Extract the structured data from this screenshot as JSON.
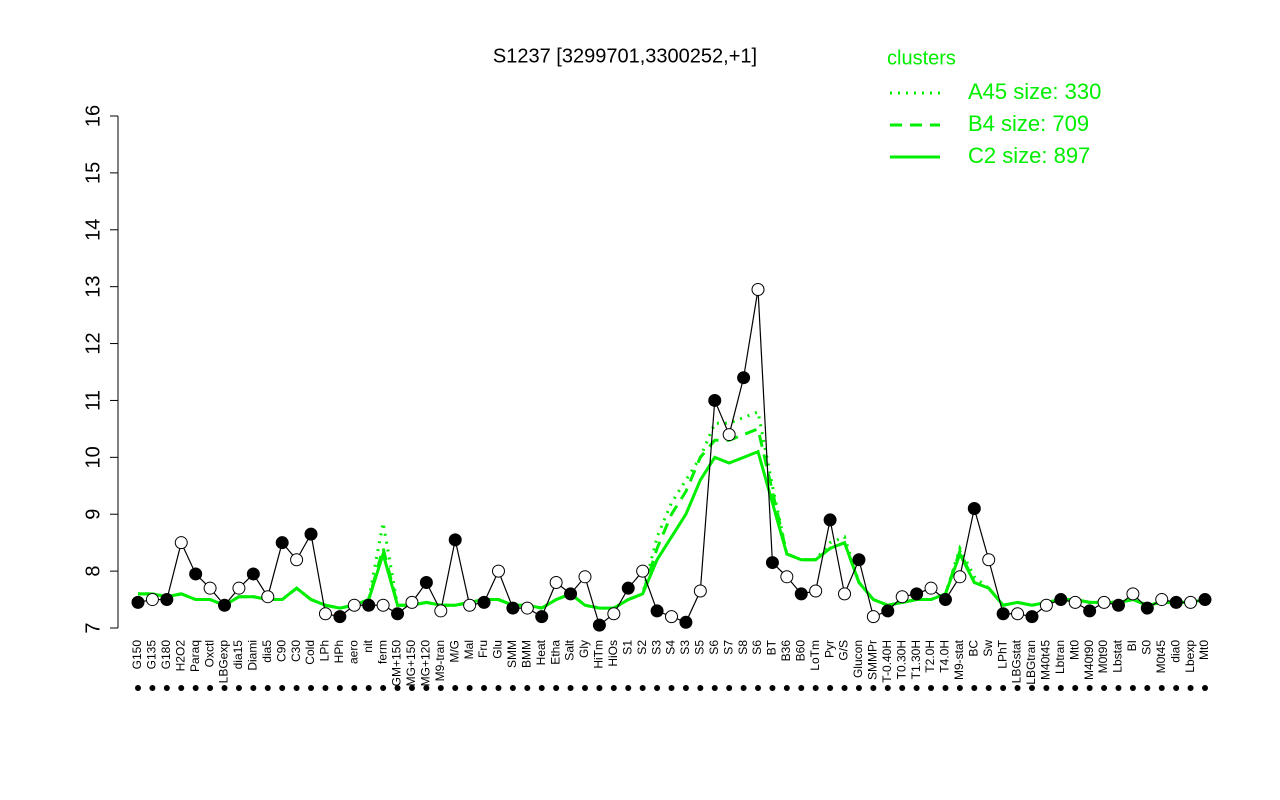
{
  "chart_data": {
    "type": "line",
    "title": "S1237 [3299701,3300252,+1]",
    "legend_title": "clusters",
    "categories": [
      "G150",
      "G135",
      "G180",
      "H2O2",
      "Paraq",
      "Oxctl",
      "LBGexp",
      "dia15",
      "Diami",
      "dia5",
      "C90",
      "C30",
      "Cold",
      "LPh",
      "HPh",
      "aero",
      "nit",
      "ferm",
      "GM+150",
      "MG+150",
      "MG+120",
      "M9-tran",
      "M/G",
      "Mal",
      "Fru",
      "Glu",
      "SMM",
      "BMM",
      "Heat",
      "Etha",
      "Salt",
      "Gly",
      "HiTm",
      "HiOs",
      "S1",
      "S2",
      "S3",
      "S4",
      "S3",
      "S5",
      "S6",
      "S7",
      "S8",
      "S6",
      "BT",
      "B36",
      "B60",
      "LoTm",
      "Pyr",
      "G/S",
      "Glucon",
      "SMMPr",
      "T-0.40H",
      "T0.30H",
      "T1.30H",
      "T2.0H",
      "T4.0H",
      "M9-stat",
      "BC",
      "Sw",
      "LPhT",
      "LBGstat",
      "LBGtran",
      "M40t45",
      "Lbtran",
      "Mt0",
      "M40t90",
      "M0t90",
      "Lbstat",
      "BI",
      "S0",
      "M0t45",
      "dia0",
      "Lbexp",
      "Mt0"
    ],
    "values": [
      7.45,
      7.5,
      7.5,
      8.5,
      7.95,
      7.7,
      7.4,
      7.7,
      7.95,
      7.55,
      8.5,
      8.2,
      8.65,
      7.25,
      7.2,
      7.4,
      7.4,
      7.4,
      7.25,
      7.45,
      7.8,
      7.3,
      8.55,
      7.4,
      7.45,
      8.0,
      7.35,
      7.35,
      7.2,
      7.8,
      7.6,
      7.9,
      7.05,
      7.25,
      7.7,
      8.0,
      7.3,
      7.2,
      7.1,
      7.65,
      11.0,
      10.4,
      11.4,
      12.95,
      8.15,
      7.9,
      7.6,
      7.65,
      8.9,
      7.6,
      8.2,
      7.2,
      7.3,
      7.55,
      7.6,
      7.7,
      7.5,
      7.9,
      9.1,
      8.2,
      7.25,
      7.25,
      7.2,
      7.4,
      7.5,
      7.45,
      7.3,
      7.45,
      7.4,
      7.6,
      7.35,
      7.5,
      7.45,
      7.45,
      7.5
    ],
    "series": [
      {
        "name": "A45 size: 330",
        "color": "#00ee00",
        "dash": "dotted",
        "values": [
          7.6,
          7.6,
          7.55,
          7.6,
          7.5,
          7.5,
          7.4,
          7.55,
          7.55,
          7.5,
          7.5,
          7.7,
          7.5,
          7.4,
          7.35,
          7.4,
          7.5,
          8.85,
          7.4,
          7.4,
          7.45,
          7.4,
          7.4,
          7.45,
          7.5,
          7.5,
          7.4,
          7.4,
          7.35,
          7.5,
          7.6,
          7.4,
          7.35,
          7.35,
          7.5,
          7.6,
          8.6,
          9.2,
          9.6,
          10.0,
          10.6,
          10.6,
          10.7,
          10.8,
          9.5,
          8.3,
          8.2,
          8.2,
          8.5,
          8.6,
          7.8,
          7.5,
          7.4,
          7.45,
          7.5,
          7.5,
          7.6,
          8.4,
          7.9,
          7.7,
          7.4,
          7.45,
          7.4,
          7.45,
          7.5,
          7.5,
          7.45,
          7.45,
          7.45,
          7.5,
          7.4,
          7.45,
          7.45,
          7.45,
          7.5
        ]
      },
      {
        "name": "B4 size: 709",
        "color": "#00ee00",
        "dash": "dashed",
        "values": [
          7.6,
          7.6,
          7.55,
          7.6,
          7.5,
          7.5,
          7.4,
          7.55,
          7.55,
          7.5,
          7.5,
          7.7,
          7.5,
          7.4,
          7.35,
          7.4,
          7.5,
          8.4,
          7.4,
          7.4,
          7.45,
          7.4,
          7.4,
          7.45,
          7.5,
          7.5,
          7.4,
          7.4,
          7.35,
          7.5,
          7.6,
          7.4,
          7.35,
          7.35,
          7.5,
          7.6,
          8.4,
          9.0,
          9.4,
          10.0,
          10.3,
          10.3,
          10.4,
          10.5,
          9.4,
          8.3,
          8.2,
          8.2,
          8.4,
          8.5,
          7.8,
          7.5,
          7.4,
          7.45,
          7.5,
          7.5,
          7.6,
          8.35,
          7.8,
          7.7,
          7.4,
          7.45,
          7.4,
          7.45,
          7.5,
          7.5,
          7.45,
          7.45,
          7.45,
          7.5,
          7.4,
          7.45,
          7.45,
          7.45,
          7.5
        ]
      },
      {
        "name": "C2 size: 897",
        "color": "#00ee00",
        "dash": "solid",
        "values": [
          7.6,
          7.6,
          7.55,
          7.6,
          7.5,
          7.5,
          7.4,
          7.55,
          7.55,
          7.5,
          7.5,
          7.7,
          7.5,
          7.4,
          7.35,
          7.4,
          7.5,
          8.3,
          7.4,
          7.4,
          7.45,
          7.4,
          7.4,
          7.45,
          7.5,
          7.5,
          7.4,
          7.4,
          7.35,
          7.5,
          7.6,
          7.4,
          7.35,
          7.35,
          7.5,
          7.6,
          8.2,
          8.6,
          9.0,
          9.6,
          10.0,
          9.9,
          10.0,
          10.1,
          9.2,
          8.3,
          8.2,
          8.2,
          8.4,
          8.5,
          7.8,
          7.5,
          7.4,
          7.45,
          7.5,
          7.5,
          7.6,
          8.3,
          7.8,
          7.7,
          7.4,
          7.45,
          7.4,
          7.45,
          7.5,
          7.5,
          7.45,
          7.45,
          7.45,
          7.5,
          7.4,
          7.45,
          7.45,
          7.45,
          7.5
        ]
      }
    ],
    "ylim": [
      7,
      16
    ],
    "yticks": [
      7,
      8,
      9,
      10,
      11,
      12,
      13,
      14,
      15,
      16
    ]
  }
}
